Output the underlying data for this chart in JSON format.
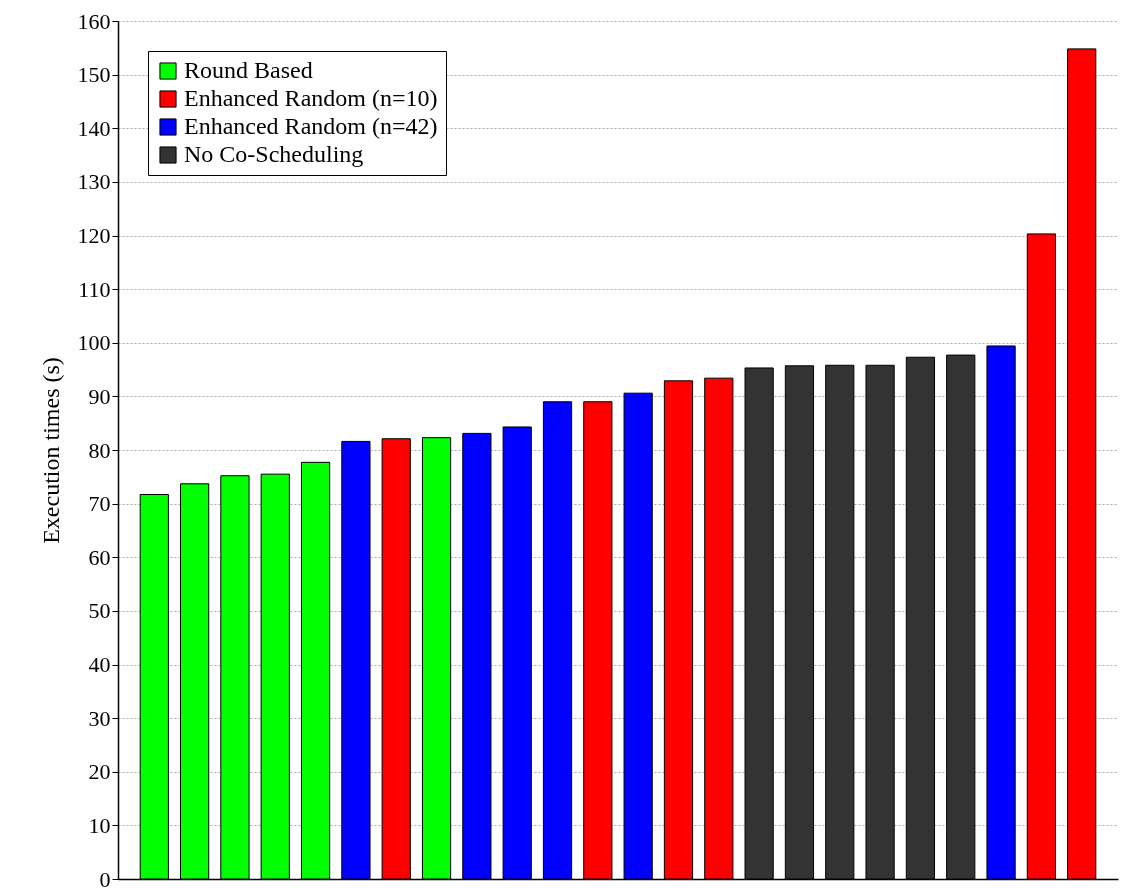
{
  "chart_data": {
    "type": "bar",
    "ylabel": "Execution times (s)",
    "categories": [
      null,
      null,
      null,
      null,
      null,
      null,
      null,
      null,
      null,
      null,
      null,
      null,
      null,
      null,
      null,
      null,
      null,
      null,
      null,
      null,
      null,
      null,
      null,
      null
    ],
    "series": [
      {
        "name": "Round Based",
        "color": "#00ff00",
        "values": [
          71.7,
          73.7,
          75.2,
          75.5,
          77.7,
          null,
          null,
          82.3,
          null,
          null,
          null,
          null,
          null,
          null,
          null,
          null,
          null,
          null,
          null,
          null,
          null,
          null,
          null,
          null
        ]
      },
      {
        "name": "Enhanced Random (n=10)",
        "color": "#ff0000",
        "values": [
          null,
          null,
          null,
          null,
          null,
          null,
          82.1,
          null,
          null,
          null,
          null,
          89.0,
          null,
          92.9,
          93.4,
          null,
          null,
          null,
          null,
          null,
          null,
          null,
          120.3,
          154.8
        ]
      },
      {
        "name": "Enhanced Random (n=42)",
        "color": "#0000ff",
        "values": [
          null,
          null,
          null,
          null,
          null,
          81.6,
          null,
          null,
          83.1,
          84.3,
          89.0,
          null,
          90.6,
          null,
          null,
          null,
          null,
          null,
          null,
          null,
          null,
          99.4,
          null,
          null
        ]
      },
      {
        "name": "No Co-Scheduling",
        "color": "#333333",
        "values": [
          null,
          null,
          null,
          null,
          null,
          null,
          null,
          null,
          null,
          null,
          null,
          null,
          null,
          null,
          null,
          95.3,
          95.7,
          95.8,
          95.8,
          97.3,
          97.7,
          null,
          null,
          null
        ]
      }
    ],
    "ylim": [
      0,
      160
    ],
    "yticks": [
      0,
      10,
      20,
      30,
      40,
      50,
      60,
      70,
      80,
      90,
      100,
      110,
      120,
      130,
      140,
      150,
      160
    ],
    "grid": "y",
    "legend": "top left",
    "tick_labels": "y"
  }
}
